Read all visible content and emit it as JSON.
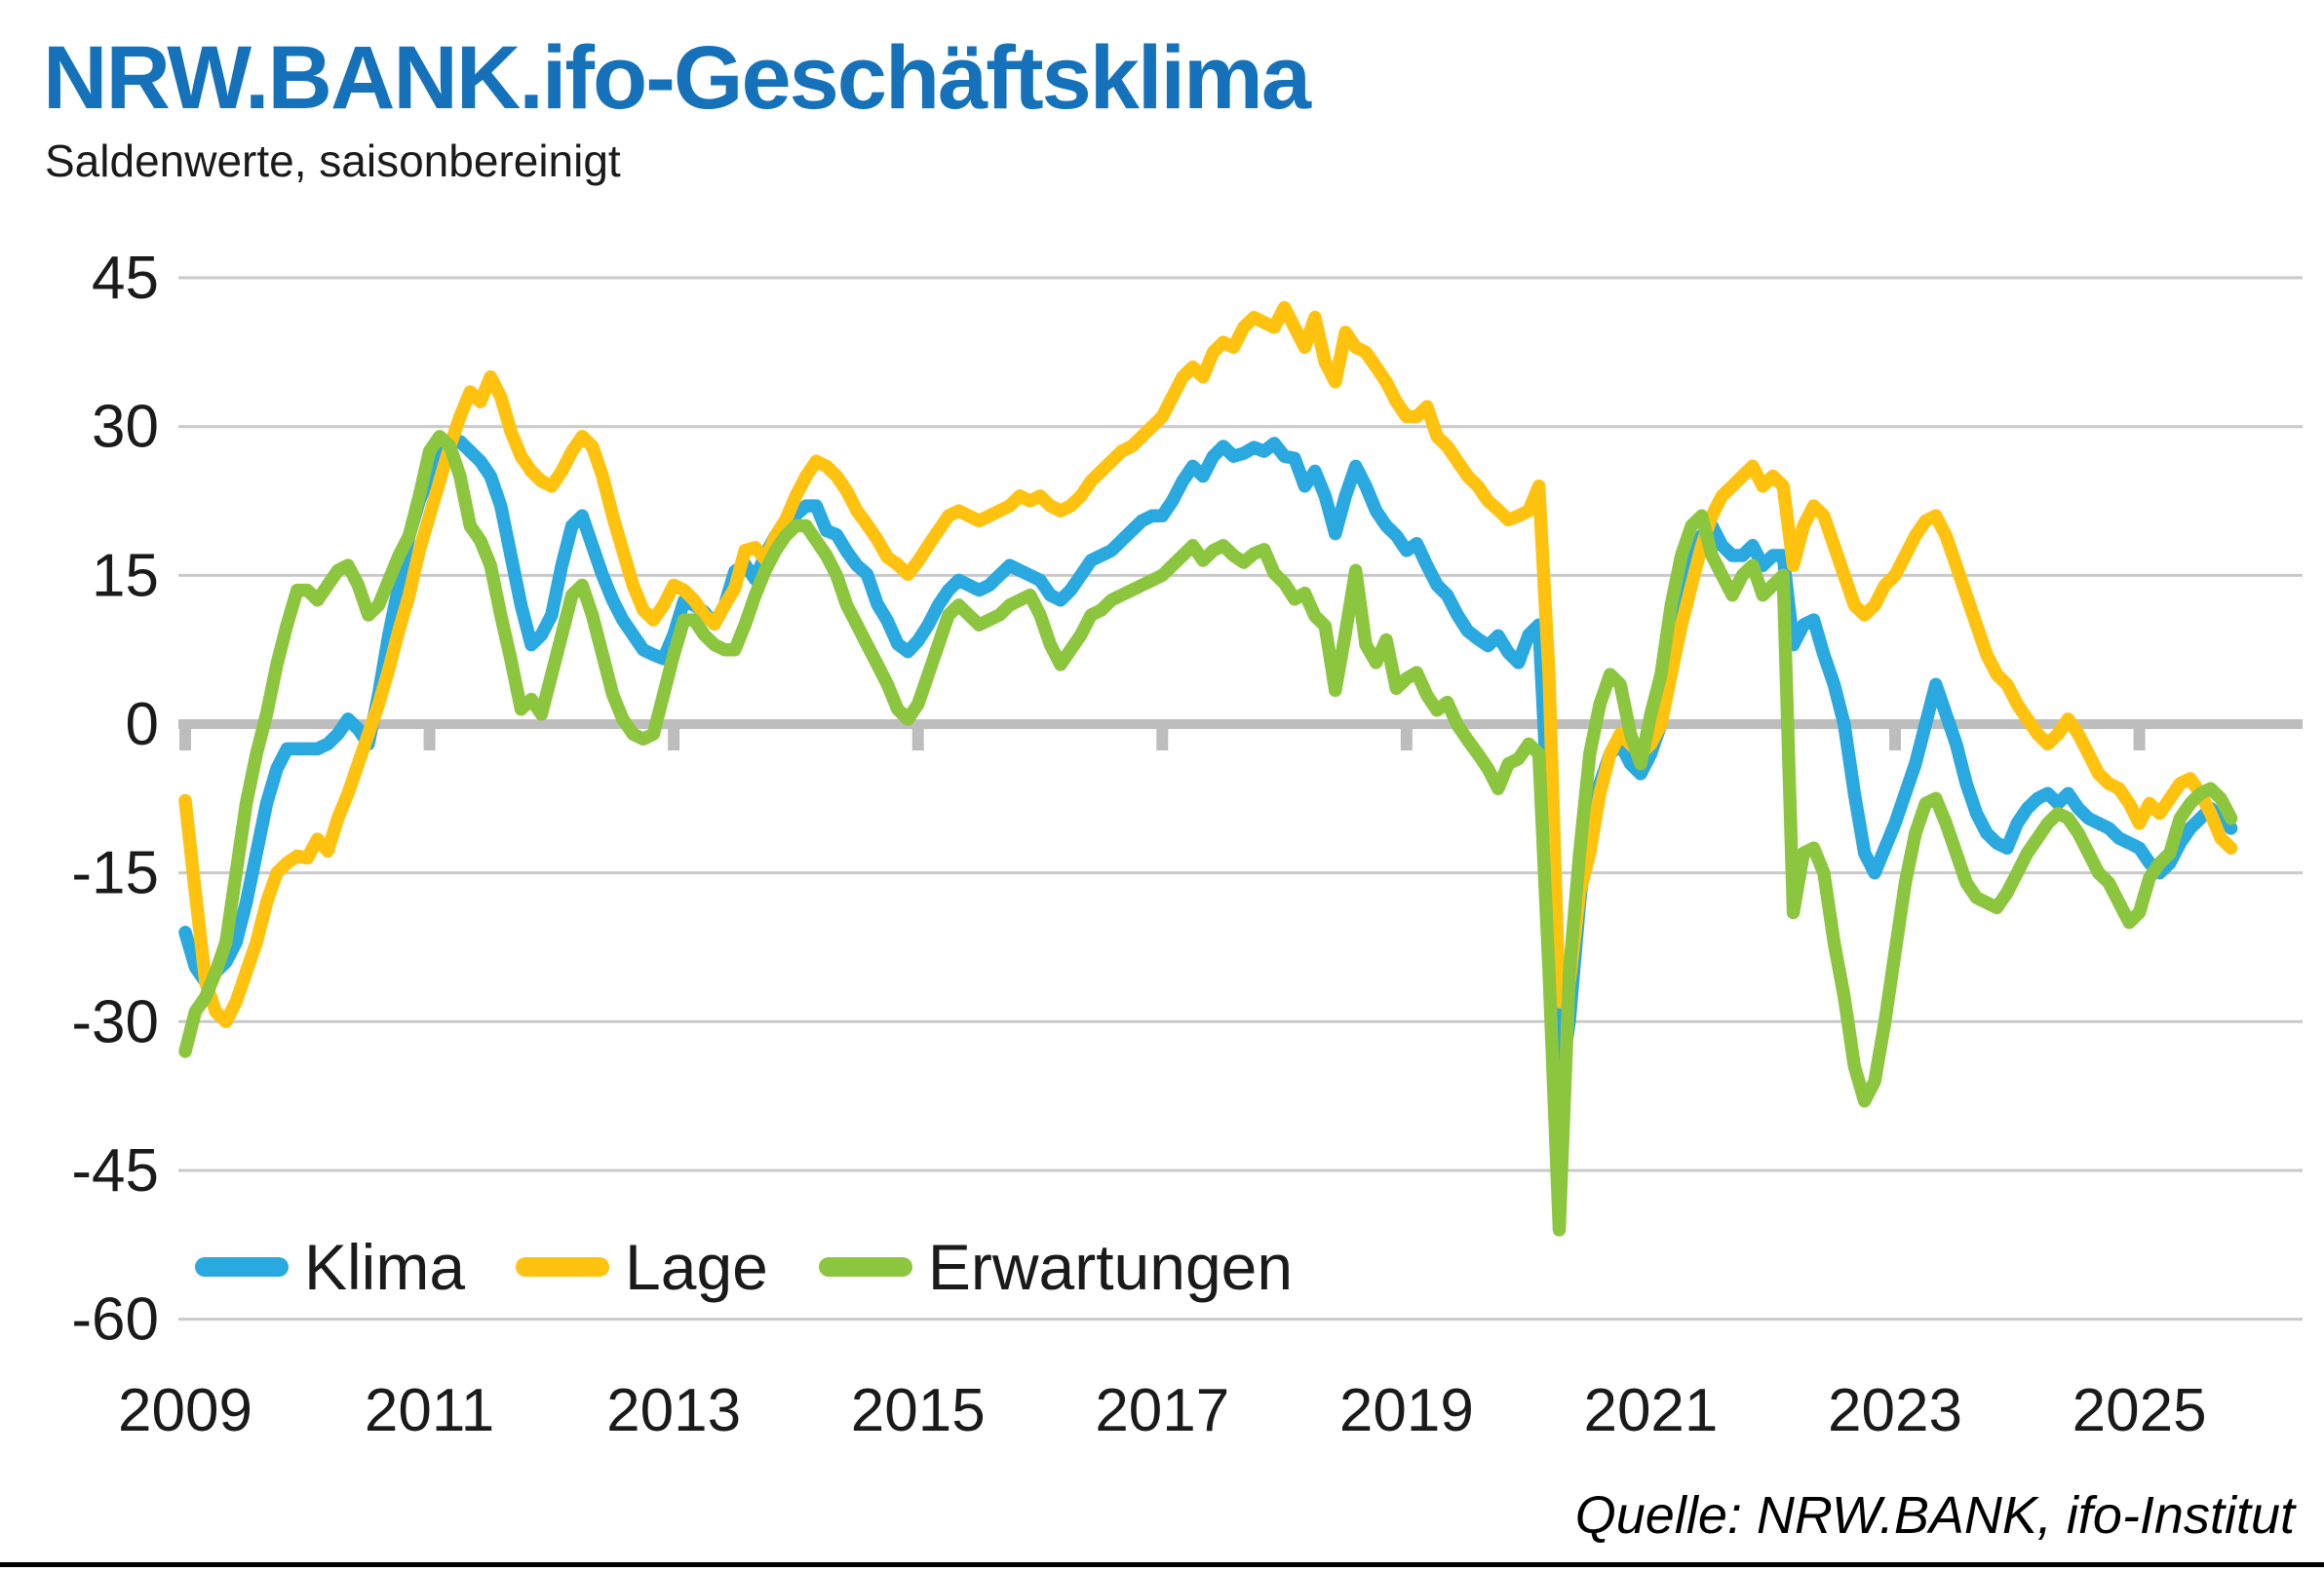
{
  "title": "NRW.BANK.ifo-Geschäftsklima",
  "subtitle": "Saldenwerte, saisonbereinigt",
  "source": "Quelle: NRW.BANK, ifo-Institut",
  "colors": {
    "title": "#1572BA",
    "text": "#1a1a1a",
    "grid": "#c9c9c9",
    "zero_line": "#bdbdbd",
    "klima": "#29A9E0",
    "lage": "#FFC20E",
    "erwartungen": "#8CC63F"
  },
  "chart_data": {
    "type": "line",
    "title": "NRW.BANK.ifo-Geschäftsklima",
    "subtitle": "Saldenwerte, saisonbereinigt",
    "source": "Quelle: NRW.BANK, ifo-Institut",
    "x_start": "2009-01",
    "x_end": "2025-10",
    "frequency": "monthly",
    "ylim": [
      -60,
      45
    ],
    "y_ticks": [
      45,
      30,
      15,
      0,
      -15,
      -30,
      -45,
      -60
    ],
    "x_tick_labels": [
      "2009",
      "2011",
      "2013",
      "2015",
      "2017",
      "2019",
      "2021",
      "2023",
      "2025"
    ],
    "grid": "horizontal",
    "legend_position": "bottom-left-inside",
    "series": [
      {
        "name": "Klima",
        "color": "#29A9E0",
        "values": [
          -21,
          -24.5,
          -26,
          -25,
          -24,
          -22,
          -18,
          -13,
          -8,
          -4.5,
          -2.5,
          -2.5,
          -2.5,
          -2.5,
          -2,
          -1,
          0.5,
          -0.5,
          -2,
          3,
          9,
          14,
          19,
          22.5,
          25,
          27.5,
          28.5,
          28.5,
          27.5,
          26.5,
          25,
          22,
          17,
          12,
          8,
          9,
          11,
          16,
          20,
          21,
          18,
          15,
          12.5,
          10.5,
          9,
          7.5,
          7,
          6.6,
          9,
          12.4,
          12,
          11.3,
          10.1,
          12,
          15.4,
          16.1,
          14.6,
          17.1,
          19,
          20.1,
          21.1,
          22,
          22,
          19.5,
          19.1,
          17.4,
          16,
          15.1,
          12.1,
          10.4,
          8.1,
          7.3,
          8.4,
          10,
          12,
          13.5,
          14.5,
          14,
          13.5,
          14,
          15,
          16,
          15.5,
          15,
          14.5,
          13,
          12.5,
          13.5,
          15,
          16.5,
          17,
          17.5,
          18.5,
          19.5,
          20.5,
          21,
          21,
          22.5,
          24.5,
          26,
          25,
          27,
          28,
          27,
          27.3,
          27.9,
          27.5,
          28.3,
          27,
          26.8,
          24,
          25.5,
          23,
          19.2,
          23,
          26,
          24,
          21.5,
          20,
          19,
          17.5,
          18.2,
          16,
          14,
          13,
          11,
          9.4,
          8.6,
          7.9,
          8.9,
          7.2,
          6.2,
          9,
          10,
          -10,
          -37,
          -30,
          -18,
          -9,
          -6,
          -3,
          -2,
          -4,
          -5,
          -3,
          0,
          6,
          12,
          16,
          19,
          20,
          18,
          17,
          17,
          18,
          16,
          17,
          17,
          8,
          10,
          10.5,
          7,
          4,
          0,
          -7,
          -13,
          -15,
          -12.5,
          -10,
          -7,
          -4,
          0,
          4,
          1,
          -2,
          -6,
          -9,
          -11,
          -12,
          -12.5,
          -10,
          -8.5,
          -7.5,
          -7,
          -8,
          -7,
          -8.5,
          -9.5,
          -10,
          -10.5,
          -11.5,
          -12,
          -12.5,
          -14,
          -15,
          -14,
          -12,
          -10.5,
          -9.5,
          -8.5,
          -9.5,
          -10.5
        ]
      },
      {
        "name": "Lage",
        "color": "#FFC20E",
        "values": [
          -7.7,
          -17,
          -26,
          -29,
          -30,
          -28,
          -25,
          -22,
          -18,
          -15,
          -14,
          -13.3,
          -13.5,
          -11.6,
          -12.8,
          -9.5,
          -7,
          -4,
          -1,
          2,
          5.5,
          9.5,
          13,
          17.5,
          21,
          24.5,
          28,
          31,
          33.5,
          32.5,
          35,
          33,
          29.5,
          27,
          25.5,
          24.5,
          24,
          25.5,
          27.5,
          29,
          28,
          25,
          21,
          17.5,
          14,
          11.5,
          10.5,
          12,
          14,
          13.5,
          12.5,
          11,
          10.1,
          12,
          13.7,
          17.5,
          17.8,
          16.6,
          19,
          20.6,
          23,
          25,
          26.5,
          26,
          25,
          23.5,
          21.5,
          20.1,
          18.6,
          16.8,
          16.1,
          15.1,
          16.4,
          18,
          19.5,
          21,
          21.5,
          21,
          20.5,
          21,
          21.5,
          22,
          23,
          22.5,
          23,
          22,
          21.5,
          22,
          23,
          24.5,
          25.5,
          26.5,
          27.5,
          28,
          29,
          30,
          31,
          33,
          35,
          36,
          35,
          37.5,
          38.5,
          38,
          40,
          41,
          40.5,
          40,
          42,
          40,
          38,
          41,
          36.5,
          34.5,
          39.5,
          38,
          37.5,
          36,
          34.5,
          32.5,
          31,
          31,
          32,
          29,
          28,
          26.5,
          25,
          24,
          22.5,
          21.6,
          20.6,
          21,
          21.5,
          24,
          5,
          -28,
          -26,
          -17,
          -13,
          -7,
          -3,
          -1,
          -2,
          -3,
          -2,
          0,
          5,
          10,
          14,
          18,
          21,
          23,
          24,
          25,
          26,
          24,
          25,
          24,
          16,
          20,
          22,
          21,
          18,
          15,
          12,
          11,
          12,
          14,
          15,
          17,
          19,
          20.5,
          21,
          19,
          16,
          13,
          10,
          7,
          5,
          4,
          2,
          0.5,
          -1,
          -2,
          -1,
          0.5,
          -1,
          -3,
          -5,
          -6,
          -6.5,
          -8,
          -10,
          -8,
          -9,
          -7.5,
          -6,
          -5.5,
          -7,
          -9,
          -11.5,
          -12.5
        ]
      },
      {
        "name": "Erwartungen",
        "color": "#8CC63F",
        "values": [
          -33,
          -29,
          -27.5,
          -25,
          -22,
          -15,
          -8,
          -3,
          1,
          6,
          10,
          13.5,
          13.5,
          12.5,
          14,
          15.5,
          16,
          14,
          11,
          12,
          14.5,
          17,
          19,
          23,
          27.5,
          29,
          28,
          25,
          20,
          18.5,
          16,
          11,
          6.5,
          1.5,
          2.5,
          1,
          5,
          9,
          13,
          14,
          11,
          7,
          3,
          0.5,
          -1,
          -1.5,
          -1,
          3,
          7,
          10.5,
          10.5,
          9,
          8,
          7.5,
          7.5,
          10,
          13,
          15.5,
          17.5,
          19,
          20,
          20,
          18.5,
          17,
          15,
          12,
          10,
          8,
          6,
          4,
          1.5,
          0.5,
          2,
          5,
          8,
          11,
          12,
          11,
          10,
          10.5,
          11,
          12,
          12.5,
          13,
          11,
          8,
          6,
          7.5,
          9,
          11,
          11.5,
          12.5,
          13,
          13.5,
          14,
          14.5,
          15,
          16,
          17,
          18,
          16.5,
          17.5,
          18,
          17,
          16.3,
          17.2,
          17.6,
          15.2,
          14.2,
          12.6,
          13.2,
          10.9,
          9.9,
          3.4,
          9.2,
          15.5,
          8,
          6.2,
          8.5,
          3.6,
          4.6,
          5.2,
          2.9,
          1.4,
          2.2,
          -0.1,
          -1.6,
          -3,
          -4.5,
          -6.5,
          -4,
          -3.5,
          -2,
          -3,
          -25,
          -51,
          -25,
          -13,
          -3,
          2,
          5,
          4,
          -1,
          -4,
          1,
          5,
          12,
          17,
          20,
          21,
          17,
          15,
          13,
          15,
          16,
          13,
          14,
          15,
          -19,
          -13,
          -12.5,
          -15,
          -22,
          -27.5,
          -34.5,
          -38,
          -36,
          -30,
          -23,
          -16,
          -11,
          -8,
          -7.5,
          -10,
          -13,
          -16,
          -17.5,
          -18,
          -18.5,
          -17,
          -15,
          -13,
          -11.5,
          -10,
          -9,
          -9.5,
          -11,
          -13,
          -15,
          -16,
          -18,
          -20,
          -19,
          -15.5,
          -14,
          -13,
          -9.5,
          -8,
          -7,
          -6.5,
          -7.5,
          -9.5
        ]
      }
    ]
  }
}
